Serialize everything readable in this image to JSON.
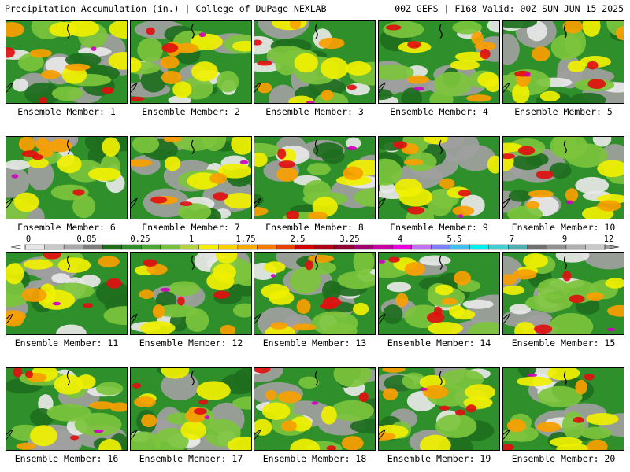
{
  "header": {
    "left": "Precipitation Accumulation (in.) | College of DuPage NEXLAB",
    "right": "00Z GEFS | F168 Valid: 00Z SUN JUN 15 2025"
  },
  "member_prefix": "Ensemble Member:",
  "members": [
    "1",
    "2",
    "3",
    "4",
    "5",
    "6",
    "7",
    "8",
    "9",
    "10",
    "11",
    "12",
    "13",
    "14",
    "15",
    "16",
    "17",
    "18",
    "19",
    "20"
  ],
  "colorbar": {
    "tick_labels": [
      "0",
      "0.05",
      "0.25",
      "1",
      "1.75",
      "2.5",
      "3.25",
      "4",
      "5.5",
      "7",
      "9",
      "12"
    ],
    "colors": [
      "#e6e6e6",
      "#c8c8c8",
      "#a8a8a8",
      "#7d7d7d",
      "#1e6e1e",
      "#2f8f2a",
      "#4aa832",
      "#78c03c",
      "#b4d23c",
      "#f0f000",
      "#f8d200",
      "#f8a800",
      "#f87800",
      "#e84000",
      "#d00000",
      "#b00018",
      "#900030",
      "#a00070",
      "#c800a0",
      "#e800e0",
      "#c070f0",
      "#8080ff",
      "#40c0f0",
      "#00f0f0",
      "#40d0d0",
      "#50b0b0",
      "#707070",
      "#909090",
      "#b0b0b0",
      "#c8c8c8"
    ]
  },
  "map_palette": {
    "gray_light": "#e8e8e8",
    "gray_mid": "#a0a0a0",
    "green_dark": "#1e6e1e",
    "green": "#3a9a2e",
    "green_light": "#7cc43c",
    "yellow": "#f0f000",
    "orange": "#f8a000",
    "red": "#e01010",
    "magenta": "#d000c0",
    "cyan": "#40e0f0"
  }
}
